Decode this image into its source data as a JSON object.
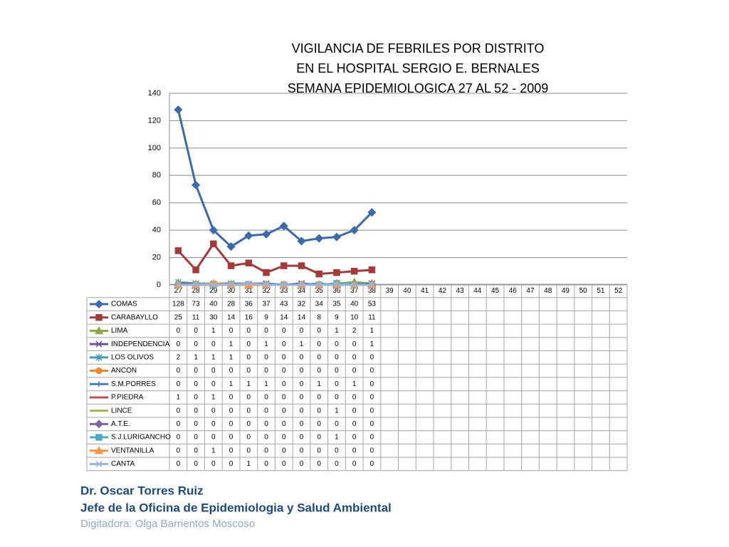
{
  "chart_data": {
    "type": "line",
    "title": [
      "VIGILANCIA DE FEBRILES  POR DISTRITO",
      "EN EL HOSPITAL SERGIO E. BERNALES",
      "SEMANA EPIDEMIOLOGICA 27 AL 52 - 2009"
    ],
    "categories": [
      "27",
      "28",
      "29",
      "30",
      "31",
      "32",
      "33",
      "34",
      "35",
      "36",
      "37",
      "38",
      "39",
      "40",
      "41",
      "42",
      "43",
      "44",
      "45",
      "46",
      "47",
      "48",
      "49",
      "50",
      "51",
      "52"
    ],
    "ylim": [
      0,
      140
    ],
    "yticks": [
      0,
      20,
      40,
      60,
      80,
      100,
      120,
      140
    ],
    "grid": true,
    "series": [
      {
        "name": "COMAS",
        "color": "#3c6aa8",
        "marker": "diamond",
        "values": [
          128,
          73,
          40,
          28,
          36,
          37,
          43,
          32,
          34,
          35,
          40,
          53,
          null,
          null,
          null,
          null,
          null,
          null,
          null,
          null,
          null,
          null,
          null,
          null,
          null,
          null
        ]
      },
      {
        "name": "CARABAYLLO",
        "color": "#a33b3a",
        "marker": "square",
        "values": [
          25,
          11,
          30,
          14,
          16,
          9,
          14,
          14,
          8,
          9,
          10,
          11,
          null,
          null,
          null,
          null,
          null,
          null,
          null,
          null,
          null,
          null,
          null,
          null,
          null,
          null
        ]
      },
      {
        "name": "LIMA",
        "color": "#8aac45",
        "marker": "triangle",
        "values": [
          0,
          0,
          1,
          0,
          0,
          0,
          0,
          0,
          0,
          1,
          2,
          1,
          null,
          null,
          null,
          null,
          null,
          null,
          null,
          null,
          null,
          null,
          null,
          null,
          null,
          null
        ]
      },
      {
        "name": "INDEPENDENCIA",
        "color": "#6e4f93",
        "marker": "x",
        "values": [
          0,
          0,
          0,
          1,
          0,
          1,
          0,
          1,
          0,
          0,
          0,
          1,
          null,
          null,
          null,
          null,
          null,
          null,
          null,
          null,
          null,
          null,
          null,
          null,
          null,
          null
        ]
      },
      {
        "name": "LOS OLIVOS",
        "color": "#3f9bb5",
        "marker": "star",
        "values": [
          2,
          1,
          1,
          1,
          0,
          0,
          0,
          0,
          0,
          0,
          0,
          0,
          null,
          null,
          null,
          null,
          null,
          null,
          null,
          null,
          null,
          null,
          null,
          null,
          null,
          null
        ]
      },
      {
        "name": "ANCON",
        "color": "#e88b33",
        "marker": "circle",
        "values": [
          0,
          0,
          0,
          0,
          0,
          0,
          0,
          0,
          0,
          0,
          0,
          0,
          null,
          null,
          null,
          null,
          null,
          null,
          null,
          null,
          null,
          null,
          null,
          null,
          null,
          null
        ]
      },
      {
        "name": "S.M.PORRES",
        "color": "#4a7ebb",
        "marker": "plus",
        "values": [
          0,
          0,
          0,
          1,
          1,
          1,
          0,
          0,
          1,
          0,
          1,
          0,
          null,
          null,
          null,
          null,
          null,
          null,
          null,
          null,
          null,
          null,
          null,
          null,
          null,
          null
        ]
      },
      {
        "name": "P.PIEDRA",
        "color": "#c0504d",
        "marker": "none",
        "values": [
          1,
          0,
          1,
          0,
          0,
          0,
          0,
          0,
          0,
          0,
          0,
          0,
          null,
          null,
          null,
          null,
          null,
          null,
          null,
          null,
          null,
          null,
          null,
          null,
          null,
          null
        ]
      },
      {
        "name": "LINCE",
        "color": "#9bbb59",
        "marker": "none",
        "values": [
          0,
          0,
          0,
          0,
          0,
          0,
          0,
          0,
          0,
          1,
          0,
          0,
          null,
          null,
          null,
          null,
          null,
          null,
          null,
          null,
          null,
          null,
          null,
          null,
          null,
          null
        ]
      },
      {
        "name": "A.T.E.",
        "color": "#8064a2",
        "marker": "diamond",
        "values": [
          0,
          0,
          0,
          0,
          0,
          0,
          0,
          0,
          0,
          0,
          0,
          0,
          null,
          null,
          null,
          null,
          null,
          null,
          null,
          null,
          null,
          null,
          null,
          null,
          null,
          null
        ]
      },
      {
        "name": "S.J.LURIGANCHO",
        "color": "#4bacc6",
        "marker": "square",
        "values": [
          0,
          0,
          0,
          0,
          0,
          0,
          0,
          0,
          0,
          1,
          0,
          0,
          null,
          null,
          null,
          null,
          null,
          null,
          null,
          null,
          null,
          null,
          null,
          null,
          null,
          null
        ]
      },
      {
        "name": "VENTANILLA",
        "color": "#f79646",
        "marker": "triangle",
        "values": [
          0,
          0,
          1,
          0,
          0,
          0,
          0,
          0,
          0,
          0,
          0,
          0,
          null,
          null,
          null,
          null,
          null,
          null,
          null,
          null,
          null,
          null,
          null,
          null,
          null,
          null
        ]
      },
      {
        "name": "CANTA",
        "color": "#9db3d7",
        "marker": "x",
        "values": [
          0,
          0,
          0,
          0,
          1,
          0,
          0,
          0,
          0,
          0,
          0,
          0,
          null,
          null,
          null,
          null,
          null,
          null,
          null,
          null,
          null,
          null,
          null,
          null,
          null,
          null
        ]
      }
    ]
  },
  "footer": {
    "author": "Dr.  Oscar  Torres Ruiz",
    "position": "Jefe de la Oficina de Epidemiologia y  Salud Ambiental",
    "typist": "Digitadora: Olga Barrientos Moscoso"
  }
}
